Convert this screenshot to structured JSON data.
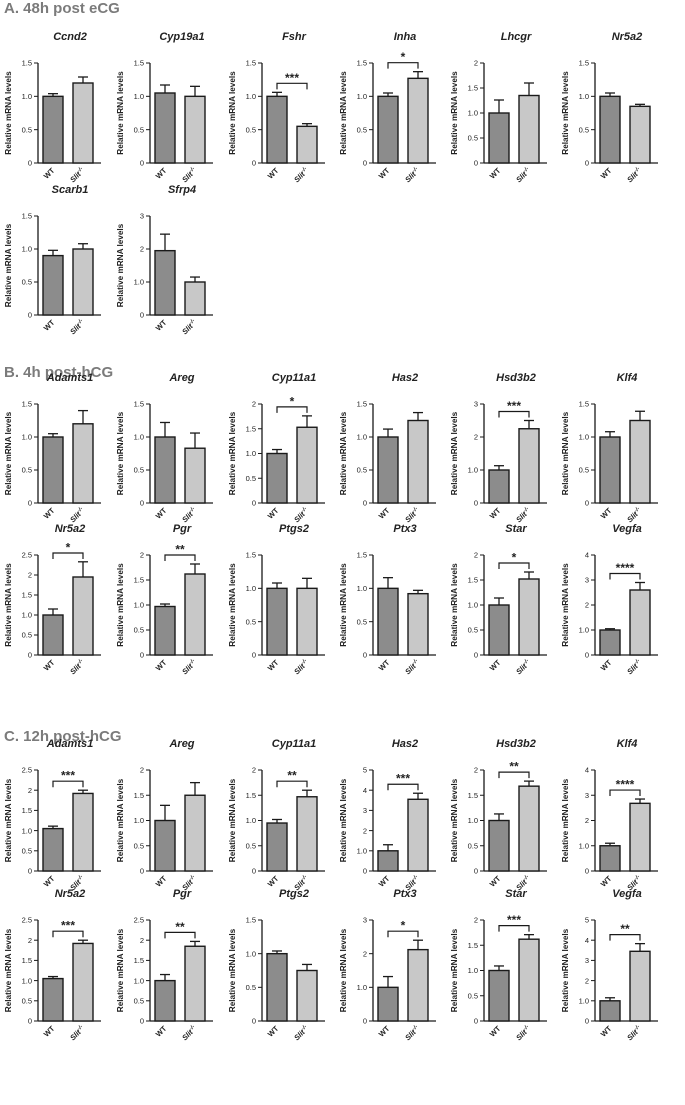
{
  "sections": [
    {
      "label": "A.  48h post eCG"
    },
    {
      "label": "B. 4h post-hCG"
    },
    {
      "label": "C. 12h post-hCG"
    }
  ],
  "ylabel": "Relative mRNA levels",
  "x_categories": [
    "WT",
    "Slit"
  ],
  "ko_superscript": "-/-",
  "colors": {
    "wt": "#8c8c8c",
    "ko": "#c8c8c8",
    "stroke": "#1a1a1a"
  },
  "chart_data": [
    {
      "type": "bar",
      "section": 0,
      "title": "Ccnd2",
      "categories": [
        "WT",
        "Slit2-/-"
      ],
      "values": [
        1.0,
        1.2
      ],
      "errors": [
        0.04,
        0.09
      ],
      "ylim": [
        0,
        1.5
      ],
      "yticks": [
        0,
        0.5,
        1.0,
        1.5
      ],
      "sig": ""
    },
    {
      "type": "bar",
      "section": 0,
      "title": "Cyp19a1",
      "categories": [
        "WT",
        "Slit2-/-"
      ],
      "values": [
        1.05,
        1.0
      ],
      "errors": [
        0.12,
        0.15
      ],
      "ylim": [
        0,
        1.5
      ],
      "yticks": [
        0,
        0.5,
        1.0,
        1.5
      ],
      "sig": ""
    },
    {
      "type": "bar",
      "section": 0,
      "title": "Fshr",
      "categories": [
        "WT",
        "Slit2-/-"
      ],
      "values": [
        1.0,
        0.55
      ],
      "errors": [
        0.06,
        0.04
      ],
      "ylim": [
        0,
        1.5
      ],
      "yticks": [
        0,
        0.5,
        1.0,
        1.5
      ],
      "sig": "***"
    },
    {
      "type": "bar",
      "section": 0,
      "title": "Inha",
      "categories": [
        "WT",
        "Slit2-/-"
      ],
      "values": [
        1.0,
        1.27
      ],
      "errors": [
        0.05,
        0.1
      ],
      "ylim": [
        0,
        1.5
      ],
      "yticks": [
        0,
        0.5,
        1.0,
        1.5
      ],
      "sig": "*"
    },
    {
      "type": "bar",
      "section": 0,
      "title": "Lhcgr",
      "categories": [
        "WT",
        "Slit2-/-"
      ],
      "values": [
        1.0,
        1.35
      ],
      "errors": [
        0.26,
        0.25
      ],
      "ylim": [
        0,
        2.0
      ],
      "yticks": [
        0,
        0.5,
        1.0,
        1.5,
        2.0
      ],
      "sig": ""
    },
    {
      "type": "bar",
      "section": 0,
      "title": "Nr5a2",
      "categories": [
        "WT",
        "Slit2-/-"
      ],
      "values": [
        1.0,
        0.85
      ],
      "errors": [
        0.05,
        0.03
      ],
      "ylim": [
        0,
        1.5
      ],
      "yticks": [
        0,
        0.5,
        1.0,
        1.5
      ],
      "sig": ""
    },
    {
      "type": "bar",
      "section": 0,
      "title": "Scarb1",
      "categories": [
        "WT",
        "Slit2-/-"
      ],
      "values": [
        0.9,
        1.0
      ],
      "errors": [
        0.08,
        0.08
      ],
      "ylim": [
        0,
        1.5
      ],
      "yticks": [
        0,
        0.5,
        1.0,
        1.5
      ],
      "sig": ""
    },
    {
      "type": "bar",
      "section": 0,
      "title": "Sfrp4",
      "categories": [
        "WT",
        "Slit2-/-"
      ],
      "values": [
        1.95,
        1.0
      ],
      "errors": [
        0.5,
        0.15
      ],
      "ylim": [
        0,
        3
      ],
      "yticks": [
        0,
        1,
        2,
        3
      ],
      "sig": ""
    },
    {
      "type": "bar",
      "section": 1,
      "title": "Adamts1",
      "categories": [
        "WT",
        "Slit2-/-"
      ],
      "values": [
        1.0,
        1.2
      ],
      "errors": [
        0.05,
        0.2
      ],
      "ylim": [
        0,
        1.5
      ],
      "yticks": [
        0,
        0.5,
        1.0,
        1.5
      ],
      "sig": ""
    },
    {
      "type": "bar",
      "section": 1,
      "title": "Areg",
      "categories": [
        "WT",
        "Slit2-/-"
      ],
      "values": [
        1.0,
        0.83
      ],
      "errors": [
        0.22,
        0.23
      ],
      "ylim": [
        0,
        1.5
      ],
      "yticks": [
        0,
        0.5,
        1.0,
        1.5
      ],
      "sig": ""
    },
    {
      "type": "bar",
      "section": 1,
      "title": "Cyp11a1",
      "categories": [
        "WT",
        "Slit2-/-"
      ],
      "values": [
        1.0,
        1.53
      ],
      "errors": [
        0.08,
        0.23
      ],
      "ylim": [
        0,
        2.0
      ],
      "yticks": [
        0,
        0.5,
        1.0,
        1.5,
        2.0
      ],
      "sig": "*"
    },
    {
      "type": "bar",
      "section": 1,
      "title": "Has2",
      "categories": [
        "WT",
        "Slit2-/-"
      ],
      "values": [
        1.0,
        1.25
      ],
      "errors": [
        0.12,
        0.12
      ],
      "ylim": [
        0,
        1.5
      ],
      "yticks": [
        0,
        0.5,
        1.0,
        1.5
      ],
      "sig": ""
    },
    {
      "type": "bar",
      "section": 1,
      "title": "Hsd3b2",
      "categories": [
        "WT",
        "Slit2-/-"
      ],
      "values": [
        1.0,
        2.25
      ],
      "errors": [
        0.13,
        0.25
      ],
      "ylim": [
        0,
        3
      ],
      "yticks": [
        0,
        1,
        2,
        3
      ],
      "sig": "***"
    },
    {
      "type": "bar",
      "section": 1,
      "title": "Klf4",
      "categories": [
        "WT",
        "Slit2-/-"
      ],
      "values": [
        1.0,
        1.25
      ],
      "errors": [
        0.08,
        0.14
      ],
      "ylim": [
        0,
        1.5
      ],
      "yticks": [
        0,
        0.5,
        1.0,
        1.5
      ],
      "sig": ""
    },
    {
      "type": "bar",
      "section": 1,
      "title": "Nr5a2",
      "categories": [
        "WT",
        "Slit2-/-"
      ],
      "values": [
        1.0,
        1.95
      ],
      "errors": [
        0.15,
        0.38
      ],
      "ylim": [
        0,
        2.5
      ],
      "yticks": [
        0,
        0.5,
        1.0,
        1.5,
        2.0,
        2.5
      ],
      "sig": "*"
    },
    {
      "type": "bar",
      "section": 1,
      "title": "Pgr",
      "categories": [
        "WT",
        "Slit2-/-"
      ],
      "values": [
        0.97,
        1.62
      ],
      "errors": [
        0.05,
        0.2
      ],
      "ylim": [
        0,
        2.0
      ],
      "yticks": [
        0,
        0.5,
        1.0,
        1.5,
        2.0
      ],
      "sig": "**"
    },
    {
      "type": "bar",
      "section": 1,
      "title": "Ptgs2",
      "categories": [
        "WT",
        "Slit2-/-"
      ],
      "values": [
        1.0,
        1.0
      ],
      "errors": [
        0.08,
        0.15
      ],
      "ylim": [
        0,
        1.5
      ],
      "yticks": [
        0,
        0.5,
        1.0,
        1.5
      ],
      "sig": ""
    },
    {
      "type": "bar",
      "section": 1,
      "title": "Ptx3",
      "categories": [
        "WT",
        "Slit2-/-"
      ],
      "values": [
        1.0,
        0.92
      ],
      "errors": [
        0.16,
        0.05
      ],
      "ylim": [
        0,
        1.5
      ],
      "yticks": [
        0,
        0.5,
        1.0,
        1.5
      ],
      "sig": ""
    },
    {
      "type": "bar",
      "section": 1,
      "title": "Star",
      "categories": [
        "WT",
        "Slit2-/-"
      ],
      "values": [
        1.0,
        1.52
      ],
      "errors": [
        0.14,
        0.14
      ],
      "ylim": [
        0,
        2.0
      ],
      "yticks": [
        0,
        0.5,
        1.0,
        1.5,
        2.0
      ],
      "sig": "*"
    },
    {
      "type": "bar",
      "section": 1,
      "title": "Vegfa",
      "categories": [
        "WT",
        "Slit2-/-"
      ],
      "values": [
        1.0,
        2.6
      ],
      "errors": [
        0.05,
        0.3
      ],
      "ylim": [
        0,
        4
      ],
      "yticks": [
        0,
        1,
        2,
        3,
        4
      ],
      "sig": "****"
    },
    {
      "type": "bar",
      "section": 2,
      "title": "Adamts1",
      "categories": [
        "WT",
        "Slit2-/-"
      ],
      "values": [
        1.05,
        1.92
      ],
      "errors": [
        0.06,
        0.08
      ],
      "ylim": [
        0,
        2.5
      ],
      "yticks": [
        0,
        0.5,
        1.0,
        1.5,
        2.0,
        2.5
      ],
      "sig": "***"
    },
    {
      "type": "bar",
      "section": 2,
      "title": "Areg",
      "categories": [
        "WT",
        "Slit2-/-"
      ],
      "values": [
        1.0,
        1.5
      ],
      "errors": [
        0.3,
        0.25
      ],
      "ylim": [
        0,
        2.0
      ],
      "yticks": [
        0,
        0.5,
        1.0,
        1.5,
        2.0
      ],
      "sig": ""
    },
    {
      "type": "bar",
      "section": 2,
      "title": "Cyp11a1",
      "categories": [
        "WT",
        "Slit2-/-"
      ],
      "values": [
        0.95,
        1.47
      ],
      "errors": [
        0.07,
        0.13
      ],
      "ylim": [
        0,
        2.0
      ],
      "yticks": [
        0,
        0.5,
        1.0,
        1.5,
        2.0
      ],
      "sig": "**"
    },
    {
      "type": "bar",
      "section": 2,
      "title": "Has2",
      "categories": [
        "WT",
        "Slit2-/-"
      ],
      "values": [
        1.0,
        3.55
      ],
      "errors": [
        0.3,
        0.3
      ],
      "ylim": [
        0,
        5
      ],
      "yticks": [
        0,
        1,
        2,
        3,
        4,
        5
      ],
      "sig": "***"
    },
    {
      "type": "bar",
      "section": 2,
      "title": "Hsd3b2",
      "categories": [
        "WT",
        "Slit2-/-"
      ],
      "values": [
        1.0,
        1.68
      ],
      "errors": [
        0.13,
        0.1
      ],
      "ylim": [
        0,
        2.0
      ],
      "yticks": [
        0,
        0.5,
        1.0,
        1.5,
        2.0
      ],
      "sig": "**"
    },
    {
      "type": "bar",
      "section": 2,
      "title": "Klf4",
      "categories": [
        "WT",
        "Slit2-/-"
      ],
      "values": [
        1.0,
        2.68
      ],
      "errors": [
        0.1,
        0.17
      ],
      "ylim": [
        0,
        4
      ],
      "yticks": [
        0,
        1,
        2,
        3,
        4
      ],
      "sig": "****"
    },
    {
      "type": "bar",
      "section": 2,
      "title": "Nr5a2",
      "categories": [
        "WT",
        "Slit2-/-"
      ],
      "values": [
        1.05,
        1.92
      ],
      "errors": [
        0.05,
        0.08
      ],
      "ylim": [
        0,
        2.5
      ],
      "yticks": [
        0,
        0.5,
        1.0,
        1.5,
        2.0,
        2.5
      ],
      "sig": "***"
    },
    {
      "type": "bar",
      "section": 2,
      "title": "Pgr",
      "categories": [
        "WT",
        "Slit2-/-"
      ],
      "values": [
        1.0,
        1.85
      ],
      "errors": [
        0.15,
        0.12
      ],
      "ylim": [
        0,
        2.5
      ],
      "yticks": [
        0,
        0.5,
        1.0,
        1.5,
        2.0,
        2.5
      ],
      "sig": "**"
    },
    {
      "type": "bar",
      "section": 2,
      "title": "Ptgs2",
      "categories": [
        "WT",
        "Slit2-/-"
      ],
      "values": [
        1.0,
        0.75
      ],
      "errors": [
        0.04,
        0.09
      ],
      "ylim": [
        0,
        1.5
      ],
      "yticks": [
        0,
        0.5,
        1.0,
        1.5
      ],
      "sig": ""
    },
    {
      "type": "bar",
      "section": 2,
      "title": "Ptx3",
      "categories": [
        "WT",
        "Slit2-/-"
      ],
      "values": [
        1.0,
        2.12
      ],
      "errors": [
        0.32,
        0.28
      ],
      "ylim": [
        0,
        3
      ],
      "yticks": [
        0,
        1,
        2,
        3
      ],
      "sig": "*"
    },
    {
      "type": "bar",
      "section": 2,
      "title": "Star",
      "categories": [
        "WT",
        "Slit2-/-"
      ],
      "values": [
        1.0,
        1.62
      ],
      "errors": [
        0.09,
        0.09
      ],
      "ylim": [
        0,
        2.0
      ],
      "yticks": [
        0,
        0.5,
        1.0,
        1.5,
        2.0
      ],
      "sig": "***"
    },
    {
      "type": "bar",
      "section": 2,
      "title": "Vegfa",
      "categories": [
        "WT",
        "Slit2-/-"
      ],
      "values": [
        1.0,
        3.45
      ],
      "errors": [
        0.15,
        0.38
      ],
      "ylim": [
        0,
        5
      ],
      "yticks": [
        0,
        1,
        2,
        3,
        4,
        5
      ],
      "sig": "**"
    }
  ]
}
